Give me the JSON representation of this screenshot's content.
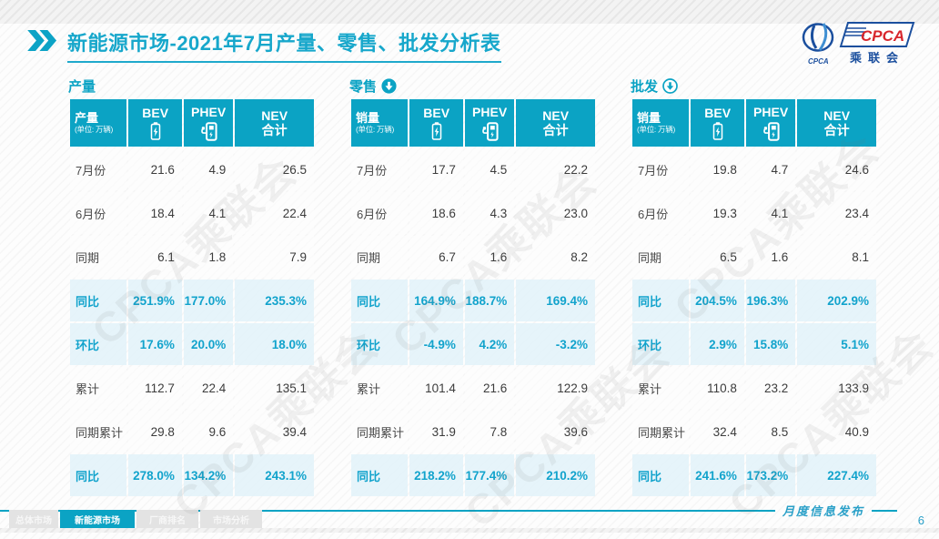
{
  "slide": {
    "title": "新能源市场-2021年7月产量、零售、批发分析表",
    "watermark_text": "CPCA乘联会",
    "colors": {
      "primary": "#0BA3C4",
      "highlight_bg": "#E7F4F9",
      "logo_navy": "#1B4F9E",
      "logo_red": "#D8262C"
    }
  },
  "logo": {
    "brand": "CPCA",
    "brand_sub": "乘联会",
    "emblem_caption": "CPCA"
  },
  "tables": [
    {
      "section_label": "产量",
      "arrow_icon": "none",
      "header": {
        "label": "产量",
        "unit": "(单位: 万辆)",
        "bev": "BEV",
        "phev": "PHEV",
        "nev_line1": "NEV",
        "nev_line2": "合计"
      },
      "rows": [
        {
          "label": "7月份",
          "bev": "21.6",
          "phev": "4.9",
          "nev": "26.5",
          "highlight": false
        },
        {
          "label": "6月份",
          "bev": "18.4",
          "phev": "4.1",
          "nev": "22.4",
          "highlight": false
        },
        {
          "label": "同期",
          "bev": "6.1",
          "phev": "1.8",
          "nev": "7.9",
          "highlight": false
        },
        {
          "label": "同比",
          "bev": "251.9%",
          "phev": "177.0%",
          "nev": "235.3%",
          "highlight": true
        },
        {
          "label": "环比",
          "bev": "17.6%",
          "phev": "20.0%",
          "nev": "18.0%",
          "highlight": true
        },
        {
          "label": "累计",
          "bev": "112.7",
          "phev": "22.4",
          "nev": "135.1",
          "highlight": false
        },
        {
          "label": "同期累计",
          "bev": "29.8",
          "phev": "9.6",
          "nev": "39.4",
          "highlight": false
        },
        {
          "label": "同比",
          "bev": "278.0%",
          "phev": "134.2%",
          "nev": "243.1%",
          "highlight": true
        }
      ]
    },
    {
      "section_label": "零售",
      "arrow_icon": "filled-down-arrow",
      "header": {
        "label": "销量",
        "unit": "(单位: 万辆)",
        "bev": "BEV",
        "phev": "PHEV",
        "nev_line1": "NEV",
        "nev_line2": "合计"
      },
      "rows": [
        {
          "label": "7月份",
          "bev": "17.7",
          "phev": "4.5",
          "nev": "22.2",
          "highlight": false
        },
        {
          "label": "6月份",
          "bev": "18.6",
          "phev": "4.3",
          "nev": "23.0",
          "highlight": false
        },
        {
          "label": "同期",
          "bev": "6.7",
          "phev": "1.6",
          "nev": "8.2",
          "highlight": false
        },
        {
          "label": "同比",
          "bev": "164.9%",
          "phev": "188.7%",
          "nev": "169.4%",
          "highlight": true
        },
        {
          "label": "环比",
          "bev": "-4.9%",
          "phev": "4.2%",
          "nev": "-3.2%",
          "highlight": true
        },
        {
          "label": "累计",
          "bev": "101.4",
          "phev": "21.6",
          "nev": "122.9",
          "highlight": false
        },
        {
          "label": "同期累计",
          "bev": "31.9",
          "phev": "7.8",
          "nev": "39.6",
          "highlight": false
        },
        {
          "label": "同比",
          "bev": "218.2%",
          "phev": "177.4%",
          "nev": "210.2%",
          "highlight": true
        }
      ]
    },
    {
      "section_label": "批发",
      "arrow_icon": "outline-down-arrow",
      "header": {
        "label": "销量",
        "unit": "(单位: 万辆)",
        "bev": "BEV",
        "phev": "PHEV",
        "nev_line1": "NEV",
        "nev_line2": "合计"
      },
      "rows": [
        {
          "label": "7月份",
          "bev": "19.8",
          "phev": "4.7",
          "nev": "24.6",
          "highlight": false
        },
        {
          "label": "6月份",
          "bev": "19.3",
          "phev": "4.1",
          "nev": "23.4",
          "highlight": false
        },
        {
          "label": "同期",
          "bev": "6.5",
          "phev": "1.6",
          "nev": "8.1",
          "highlight": false
        },
        {
          "label": "同比",
          "bev": "204.5%",
          "phev": "196.3%",
          "nev": "202.9%",
          "highlight": true
        },
        {
          "label": "环比",
          "bev": "2.9%",
          "phev": "15.8%",
          "nev": "5.1%",
          "highlight": true
        },
        {
          "label": "累计",
          "bev": "110.8",
          "phev": "23.2",
          "nev": "133.9",
          "highlight": false
        },
        {
          "label": "同期累计",
          "bev": "32.4",
          "phev": "8.5",
          "nev": "40.9",
          "highlight": false
        },
        {
          "label": "同比",
          "bev": "241.6%",
          "phev": "173.2%",
          "nev": "227.4%",
          "highlight": true
        }
      ]
    }
  ],
  "footer": {
    "publish_label": "月度信息发布",
    "page_number": "6",
    "tabs": [
      {
        "label": "总体市场",
        "active": false
      },
      {
        "label": "新能源市场",
        "active": true
      },
      {
        "label": "厂商排名",
        "active": false
      },
      {
        "label": "市场分析",
        "active": false
      }
    ]
  }
}
